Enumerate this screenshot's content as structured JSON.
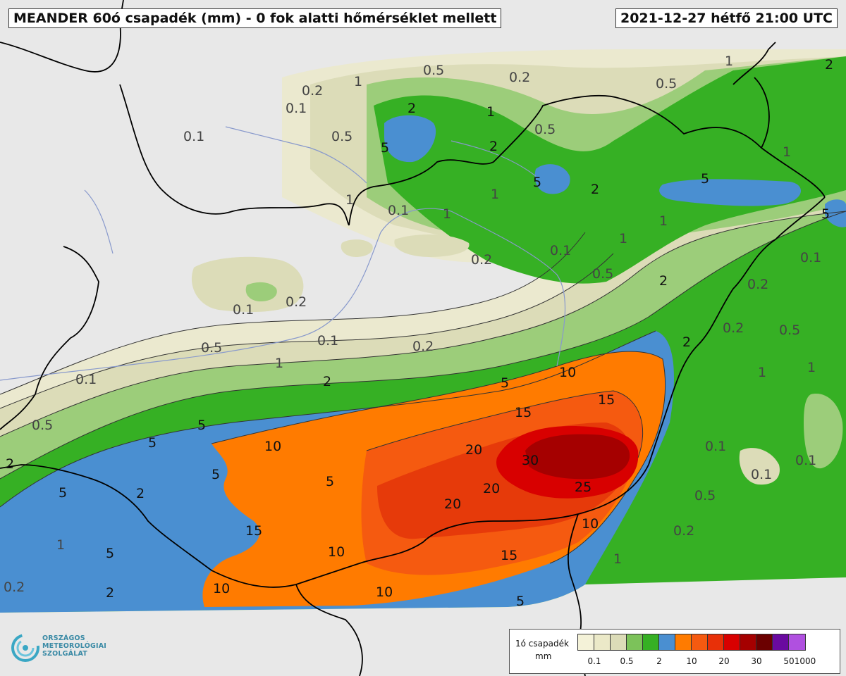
{
  "header": {
    "title": "MEANDER 60ó csapadék (mm) - 0 fok alatti hőmérséklet mellett",
    "datetime": "2021-12-27 hétfő 21:00 UTC"
  },
  "logo": {
    "line1": "ORSZÁGOS",
    "line2": "METEOROLÓGIAI",
    "line3": "SZOLGÁLAT"
  },
  "legend": {
    "title": "1ó csapadék",
    "unit": "mm",
    "ticks": [
      "0.1",
      "0.5",
      "2",
      "10",
      "20",
      "30",
      "50",
      "1000"
    ],
    "colors": [
      "#f4f2d8",
      "#ebe9c8",
      "#dcdcb8",
      "#7cc25a",
      "#36b024",
      "#4a8fd1",
      "#ff7b00",
      "#f55a10",
      "#e83008",
      "#d80000",
      "#a50000",
      "#6b0000",
      "#6a0aa0",
      "#b050e0"
    ]
  },
  "map": {
    "colors": {
      "background": "#e8e8e8",
      "p01": "#ebe9cf",
      "p05": "#dcdcb8",
      "p1": "#9ccd7a",
      "p2": "#36b024",
      "p5": "#4a8fd1",
      "p10": "#ff7b00",
      "p15": "#f55a10",
      "p20": "#e63a0a",
      "p25": "#d80000",
      "p30": "#a50000",
      "border": "#000000",
      "river": "#8899cc"
    },
    "contour_labels": [
      "0.1",
      "0.2",
      "0.5",
      "1",
      "2",
      "5",
      "10",
      "15",
      "20",
      "25",
      "30"
    ]
  }
}
